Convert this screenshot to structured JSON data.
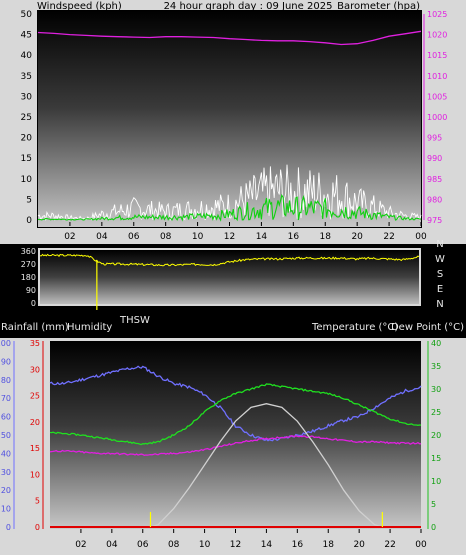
{
  "colors": {
    "background": "#000000",
    "frame": "#d8d8d8",
    "axis_text": "#000000",
    "header_text": "#e8e8e8",
    "wind_speed": "#ffffff",
    "wind_avg": "#10d010",
    "barometer": "#e020e0",
    "wind_dir": "#ffff00",
    "humidity": "#7070ff",
    "temperature": "#20e020",
    "dew_point": "#e020e0",
    "thsw": "#d0d0d0",
    "rainfall": "#e00000",
    "marker": "#ffff00"
  },
  "chart_data": [
    {
      "id": "wind_barometer",
      "type": "line",
      "title": "24 hour graph day : 09 June 2025",
      "ylabel_left": "Windspeed (kph)",
      "ylabel_right": "Barometer (hpa)",
      "x_ticks": [
        "02",
        "04",
        "06",
        "08",
        "10",
        "12",
        "14",
        "16",
        "18",
        "20",
        "22",
        "00"
      ],
      "x_range_hours": [
        0,
        24
      ],
      "y_left": {
        "range": [
          0,
          50
        ],
        "ticks": [
          "0",
          "5",
          "10",
          "15",
          "20",
          "25",
          "30",
          "35",
          "40",
          "45",
          "50"
        ]
      },
      "y_right": {
        "range": [
          975,
          1025
        ],
        "ticks": [
          "975",
          "980",
          "985",
          "990",
          "995",
          "1000",
          "1005",
          "1010",
          "1015",
          "1020",
          "1025"
        ]
      },
      "series": [
        {
          "key": "barometer",
          "axis": "right",
          "color": "#e020e0",
          "x": [
            0,
            1,
            2,
            3,
            4,
            5,
            6,
            7,
            8,
            9,
            10,
            11,
            12,
            13,
            14,
            15,
            16,
            17,
            18,
            19,
            20,
            21,
            22,
            23,
            24
          ],
          "values": [
            1020.5,
            1020.3,
            1020.0,
            1019.8,
            1019.6,
            1019.5,
            1019.4,
            1019.3,
            1019.5,
            1019.5,
            1019.4,
            1019.3,
            1019.0,
            1018.8,
            1018.6,
            1018.5,
            1018.5,
            1018.3,
            1018.0,
            1017.6,
            1017.8,
            1018.6,
            1019.6,
            1020.2,
            1020.8
          ]
        },
        {
          "key": "wind_speed",
          "axis": "left",
          "color": "#ffffff",
          "x": [
            0,
            1,
            2,
            3,
            4,
            5,
            6,
            7,
            8,
            9,
            10,
            11,
            12,
            13,
            14,
            15,
            16,
            17,
            18,
            19,
            20,
            21,
            22,
            23,
            24
          ],
          "values": [
            1.5,
            1.5,
            0.8,
            0.5,
            2.0,
            3.0,
            4.0,
            3.5,
            3.0,
            3.5,
            4.0,
            4.5,
            5.0,
            7.0,
            9.0,
            10.0,
            9.5,
            9.5,
            9.0,
            8.5,
            6.0,
            4.5,
            2.5,
            1.5,
            1.0
          ]
        },
        {
          "key": "wind_avg",
          "axis": "left",
          "color": "#10d010",
          "x": [
            0,
            1,
            2,
            3,
            4,
            5,
            6,
            7,
            8,
            9,
            10,
            11,
            12,
            13,
            14,
            15,
            16,
            17,
            18,
            19,
            20,
            21,
            22,
            23,
            24
          ],
          "values": [
            0.3,
            0.3,
            0.2,
            0.2,
            0.5,
            0.8,
            1.0,
            1.0,
            1.0,
            1.0,
            1.2,
            1.5,
            2.0,
            3.0,
            3.8,
            4.5,
            4.2,
            4.0,
            3.8,
            3.5,
            2.5,
            1.8,
            1.0,
            0.5,
            0.3
          ]
        }
      ]
    },
    {
      "id": "wind_direction",
      "type": "line",
      "title": "",
      "x_range_hours": [
        0,
        24
      ],
      "y_left": {
        "range": [
          0,
          360
        ],
        "ticks": [
          "0",
          "90",
          "180",
          "270",
          "360"
        ]
      },
      "y_right_labels": [
        "N",
        "W",
        "S",
        "E",
        "N"
      ],
      "series": [
        {
          "key": "wind_dir",
          "color": "#ffff00",
          "x": [
            0,
            1,
            2,
            3,
            3.6,
            4,
            5,
            6,
            7,
            8,
            9,
            10,
            11,
            12,
            13,
            14,
            15,
            16,
            17,
            18,
            19,
            20,
            21,
            22,
            23,
            24
          ],
          "values": [
            330,
            330,
            330,
            330,
            290,
            270,
            270,
            268,
            265,
            262,
            265,
            268,
            265,
            285,
            300,
            305,
            305,
            310,
            312,
            310,
            312,
            305,
            310,
            305,
            300,
            320
          ]
        }
      ],
      "marker_x_hours": 3.6
    },
    {
      "id": "temp_humidity_rain",
      "type": "line",
      "title": "",
      "ylabel_rain": "Rainfall (mm)",
      "ylabel_humidity": "Humidity",
      "ylabel_temp": "Temperature (°C)",
      "ylabel_dew": "Dew Point (°C)",
      "legend_thsw": "THSW",
      "x_ticks": [
        "02",
        "04",
        "06",
        "08",
        "10",
        "12",
        "14",
        "16",
        "18",
        "20",
        "22",
        "00"
      ],
      "x_range_hours": [
        0,
        24
      ],
      "y_humidity": {
        "range": [
          0,
          100
        ],
        "ticks": [
          "0",
          "10",
          "20",
          "30",
          "40",
          "50",
          "60",
          "70",
          "80",
          "90",
          "100"
        ]
      },
      "y_rain": {
        "range": [
          0,
          35
        ],
        "ticks": [
          "0",
          "5",
          "10",
          "15",
          "20",
          "25",
          "30",
          "35"
        ]
      },
      "y_temp": {
        "range": [
          0,
          40
        ],
        "ticks": [
          "0",
          "5",
          "10",
          "15",
          "20",
          "25",
          "30",
          "35",
          "40"
        ]
      },
      "series": [
        {
          "key": "humidity",
          "axis": "humidity",
          "color": "#7070ff",
          "x": [
            0,
            1,
            2,
            3,
            4,
            5,
            6,
            7,
            8,
            9,
            10,
            11,
            12,
            13,
            14,
            15,
            16,
            17,
            18,
            19,
            20,
            21,
            22,
            23,
            24
          ],
          "values": [
            78,
            78,
            80,
            82,
            84,
            86,
            87,
            82,
            78,
            76,
            72,
            65,
            55,
            50,
            47,
            48,
            50,
            52,
            55,
            58,
            60,
            65,
            70,
            74,
            76
          ]
        },
        {
          "key": "temperature",
          "axis": "temp",
          "color": "#20e020",
          "x": [
            0,
            1,
            2,
            3,
            4,
            5,
            6,
            7,
            8,
            9,
            10,
            11,
            12,
            13,
            14,
            15,
            16,
            17,
            18,
            19,
            20,
            21,
            22,
            23,
            24
          ],
          "values": [
            20.5,
            20.3,
            20.0,
            19.5,
            19.0,
            18.5,
            18.0,
            18.5,
            20.0,
            22.0,
            25.0,
            27.5,
            29.0,
            30.0,
            31.0,
            30.5,
            30.0,
            29.5,
            29.0,
            28.0,
            26.5,
            25.0,
            23.5,
            22.5,
            22.0
          ]
        },
        {
          "key": "dew_point",
          "axis": "temp",
          "color": "#e020e0",
          "x": [
            0,
            1,
            2,
            3,
            4,
            5,
            6,
            7,
            8,
            9,
            10,
            11,
            12,
            13,
            14,
            15,
            16,
            17,
            18,
            19,
            20,
            21,
            22,
            23,
            24
          ],
          "values": [
            16.5,
            16.5,
            16.3,
            16.0,
            16.0,
            15.8,
            15.7,
            15.8,
            16.0,
            16.3,
            16.8,
            17.5,
            18.2,
            18.8,
            19.2,
            19.5,
            19.8,
            19.6,
            19.2,
            18.8,
            18.5,
            18.5,
            18.3,
            18.2,
            18.2
          ]
        },
        {
          "key": "thsw",
          "axis": "temp",
          "color": "#d0d0d0",
          "x": [
            6.5,
            7,
            8,
            9,
            10,
            11,
            12,
            13,
            14,
            15,
            16,
            17,
            18,
            19,
            20,
            21,
            21.5
          ],
          "values": [
            0,
            0.5,
            4,
            8.5,
            13.5,
            18.5,
            23,
            26,
            26.8,
            26,
            23,
            18.5,
            13.5,
            8,
            3.5,
            0.5,
            0
          ]
        },
        {
          "key": "rainfall",
          "axis": "rain",
          "color": "#e00000",
          "x": [
            0,
            24
          ],
          "values": [
            0,
            0
          ]
        }
      ],
      "marker_x_hours": [
        6.5,
        21.5
      ]
    }
  ]
}
